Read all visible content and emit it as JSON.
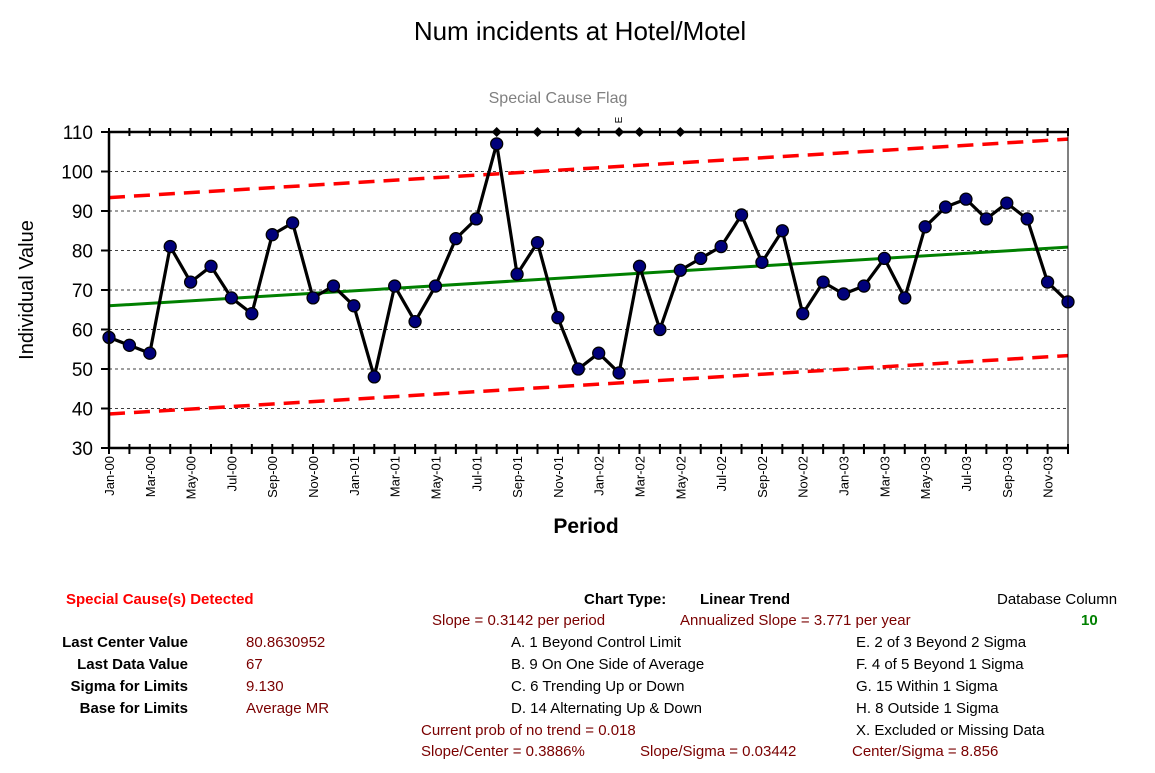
{
  "chart_data": {
    "type": "line",
    "title": "Num incidents at Hotel/Motel",
    "subtitle": "Special Cause Flag",
    "xlabel": "Period",
    "ylabel": "Individual Value",
    "ylim": [
      30,
      110
    ],
    "yticks": [
      30,
      40,
      50,
      60,
      70,
      80,
      90,
      100,
      110
    ],
    "grid": true,
    "x": [
      "Jan-00",
      "Feb-00",
      "Mar-00",
      "Apr-00",
      "May-00",
      "Jun-00",
      "Jul-00",
      "Aug-00",
      "Sep-00",
      "Oct-00",
      "Nov-00",
      "Dec-00",
      "Jan-01",
      "Feb-01",
      "Mar-01",
      "Apr-01",
      "May-01",
      "Jun-01",
      "Jul-01",
      "Aug-01",
      "Sep-01",
      "Oct-01",
      "Nov-01",
      "Dec-01",
      "Jan-02",
      "Feb-02",
      "Mar-02",
      "Apr-02",
      "May-02",
      "Jun-02",
      "Jul-02",
      "Aug-02",
      "Sep-02",
      "Oct-02",
      "Nov-02",
      "Dec-02",
      "Jan-03",
      "Feb-03",
      "Mar-03",
      "Apr-03",
      "May-03",
      "Jun-03",
      "Jul-03",
      "Aug-03",
      "Sep-03",
      "Oct-03",
      "Nov-03",
      "Dec-03"
    ],
    "xtick_labels": [
      "Jan-00",
      "Mar-00",
      "May-00",
      "Jul-00",
      "Sep-00",
      "Nov-00",
      "Jan-01",
      "Mar-01",
      "May-01",
      "Jul-01",
      "Sep-01",
      "Nov-01",
      "Jan-02",
      "Mar-02",
      "May-02",
      "Jul-02",
      "Sep-02",
      "Nov-02",
      "Jan-03",
      "Mar-03",
      "May-03",
      "Jul-03",
      "Sep-03",
      "Nov-03"
    ],
    "series": [
      {
        "name": "",
        "color": "#000000",
        "marker_color": "#00007a",
        "values": [
          58,
          56,
          54,
          81,
          72,
          76,
          68,
          64,
          84,
          87,
          68,
          71,
          66,
          48,
          71,
          62,
          71,
          83,
          88,
          107,
          74,
          82,
          63,
          50,
          54,
          49,
          76,
          60,
          75,
          78,
          81,
          89,
          77,
          85,
          64,
          72,
          69,
          71,
          78,
          68,
          86,
          91,
          93,
          88,
          92,
          88,
          72,
          67
        ]
      }
    ],
    "center_line": {
      "color": "#008000",
      "start": 66.0,
      "end": 80.8630952
    },
    "ucl": {
      "color": "#ff0000",
      "start": 93.4,
      "end": 108.2
    },
    "lcl": {
      "color": "#ff0000",
      "start": 38.6,
      "end": 53.4
    },
    "flags": [
      {
        "period": "Aug-01",
        "label": ""
      },
      {
        "period": "Oct-01",
        "label": ""
      },
      {
        "period": "Dec-01",
        "label": ""
      },
      {
        "period": "Feb-02",
        "label": "E"
      },
      {
        "period": "Mar-02",
        "label": ""
      },
      {
        "period": "May-02",
        "label": ""
      }
    ],
    "colors": {
      "point": "#00007a",
      "series_line": "#000000",
      "center": "#008000",
      "limits": "#ff0000"
    }
  },
  "summary": {
    "special_cause_detected": "Special Cause(s) Detected",
    "stats": [
      {
        "label": "Last Center Value",
        "value": "80.8630952"
      },
      {
        "label": "Last Data Value",
        "value": "67"
      },
      {
        "label": "Sigma for Limits",
        "value": "9.130"
      },
      {
        "label": "Base for Limits",
        "value": "Average MR"
      }
    ],
    "chart_type_label": "Chart Type:",
    "chart_type_value": "Linear Trend",
    "slope": "Slope = 0.3142 per period",
    "annualized_slope": "Annualized Slope = 3.771 per year",
    "database_column_label": "Database Column",
    "database_column_value": "10",
    "rules_left": [
      "A.  1 Beyond Control Limit",
      "B.  9 On One Side of Average",
      "C.  6 Trending Up or Down",
      "D.  14 Alternating  Up & Down"
    ],
    "rules_right": [
      "E.  2 of 3 Beyond 2 Sigma",
      "F.  4 of 5 Beyond 1 Sigma",
      "G.  15 Within 1 Sigma",
      "H.  8 Outside 1 Sigma",
      "X.  Excluded or Missing Data"
    ],
    "prob_no_trend": "Current prob of no trend = 0.018",
    "slope_center": "Slope/Center = 0.3886%",
    "slope_sigma": "Slope/Sigma = 0.03442",
    "center_sigma": "Center/Sigma = 8.856"
  }
}
